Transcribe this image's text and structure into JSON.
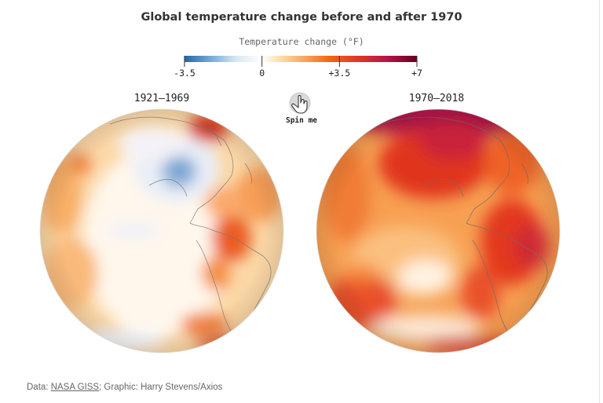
{
  "title": "Global temperature change before and after 1970",
  "legend": {
    "title": "Temperature change (°F)",
    "ticks": [
      "-3.5",
      "0",
      "+3.5",
      "+7"
    ],
    "tick_values": [
      -3.5,
      0,
      3.5,
      7
    ],
    "domain": [
      -3.5,
      7
    ],
    "colors": [
      "#2166ac",
      "#a9cbe6",
      "#ffffff",
      "#fdb863",
      "#f16913",
      "#d7301f",
      "#a50f4f",
      "#67001f"
    ]
  },
  "globes": [
    {
      "label": "1921–1969"
    },
    {
      "label": "1970–2018"
    }
  ],
  "spin_button": {
    "label": "Spin me",
    "icon": "hand-pointer-icon"
  },
  "source": {
    "prefix": "Data: ",
    "link_text": "NASA GISS",
    "suffix": "; Graphic: Harry Stevens/Axios"
  }
}
